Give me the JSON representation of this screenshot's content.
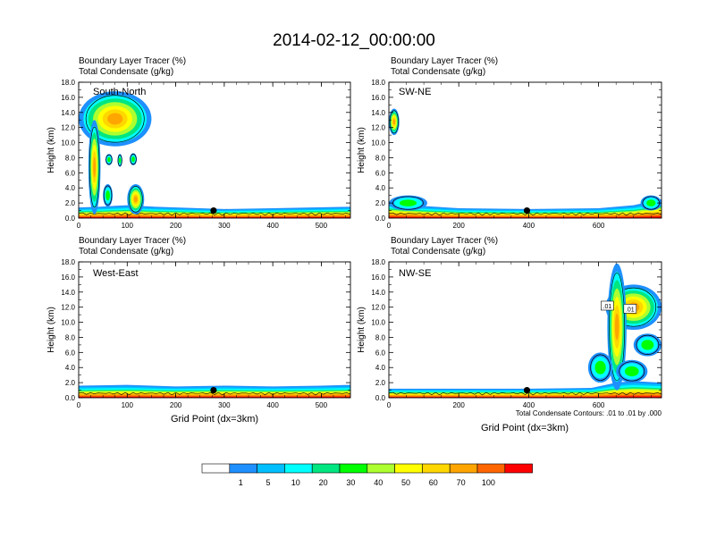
{
  "title": "2014-02-12_00:00:00",
  "subtitle_line1": "Boundary Layer Tracer   (%)",
  "subtitle_line2": "Total Condensate   (g/kg)",
  "ylabel": "Height (km)",
  "xlabel": "Grid Point (dx=3km)",
  "contour_note": "Total Condensate Contours: .01 to .01 by .000",
  "colorbar": {
    "labels": [
      "1",
      "5",
      "10",
      "20",
      "30",
      "40",
      "50",
      "60",
      "70",
      "100"
    ],
    "colors": [
      "#ffffff",
      "#1e90ff",
      "#00bfff",
      "#00ffff",
      "#00e680",
      "#00ff00",
      "#adff2f",
      "#ffff00",
      "#ffd700",
      "#ffa500",
      "#ff6600",
      "#ff0000"
    ]
  },
  "chart_data": [
    {
      "type": "heatmap",
      "name": "South-North",
      "ylim": [
        0,
        18
      ],
      "xlim": [
        0,
        560
      ],
      "y_ticks": [
        "0.0",
        "2.0",
        "4.0",
        "6.0",
        "8.0",
        "10.0",
        "12.0",
        "14.0",
        "16.0",
        "18.0"
      ],
      "x_ticks": [
        {
          "v": 0,
          "label": "0"
        },
        {
          "v": 100,
          "label": "100"
        },
        {
          "v": 200,
          "label": "200"
        },
        {
          "v": 300,
          "label": "300"
        },
        {
          "v": 400,
          "label": "400"
        },
        {
          "v": 500,
          "label": "500"
        }
      ],
      "surface_point": {
        "x": 278,
        "y": 1.0
      },
      "bl_top": [
        [
          0,
          1.4
        ],
        [
          40,
          1.5
        ],
        [
          100,
          1.7
        ],
        [
          160,
          1.5
        ],
        [
          250,
          1.3
        ],
        [
          300,
          1.2
        ],
        [
          400,
          1.3
        ],
        [
          480,
          1.4
        ],
        [
          560,
          1.5
        ]
      ],
      "blobs": [
        {
          "x": [
            0,
            150
          ],
          "y": [
            9.5,
            16.8
          ],
          "shape": "cloud"
        },
        {
          "x": [
            20,
            45
          ],
          "y": [
            0.5,
            13.0
          ],
          "shape": "column"
        },
        {
          "x": [
            100,
            135
          ],
          "y": [
            0.5,
            4.5
          ],
          "shape": "column"
        },
        {
          "x": [
            50,
            70
          ],
          "y": [
            1.5,
            4.5
          ],
          "shape": "small"
        },
        {
          "x": [
            55,
            70
          ],
          "y": [
            7.0,
            8.5
          ],
          "shape": "small"
        },
        {
          "x": [
            80,
            90
          ],
          "y": [
            6.8,
            8.5
          ],
          "shape": "small"
        },
        {
          "x": [
            105,
            120
          ],
          "y": [
            7.0,
            8.6
          ],
          "shape": "small"
        }
      ]
    },
    {
      "type": "heatmap",
      "name": "SW-NE",
      "ylim": [
        0,
        18
      ],
      "xlim": [
        0,
        780
      ],
      "y_ticks": [
        "0.0",
        "2.0",
        "4.0",
        "6.0",
        "8.0",
        "10.0",
        "12.0",
        "14.0",
        "16.0",
        "18.0"
      ],
      "x_ticks": [
        {
          "v": 0,
          "label": "0"
        },
        {
          "v": 200,
          "label": "200"
        },
        {
          "v": 400,
          "label": "400"
        },
        {
          "v": 600,
          "label": "600"
        }
      ],
      "surface_point": {
        "x": 395,
        "y": 1.0
      },
      "bl_top": [
        [
          0,
          2.0
        ],
        [
          40,
          1.8
        ],
        [
          100,
          1.6
        ],
        [
          200,
          1.3
        ],
        [
          400,
          1.2
        ],
        [
          600,
          1.3
        ],
        [
          700,
          1.7
        ],
        [
          780,
          2.5
        ]
      ],
      "blobs": [
        {
          "x": [
            0,
            30
          ],
          "y": [
            11.0,
            14.5
          ],
          "shape": "cloud"
        },
        {
          "x": [
            0,
            110
          ],
          "y": [
            1.0,
            3.0
          ],
          "shape": "small"
        },
        {
          "x": [
            720,
            780
          ],
          "y": [
            1.0,
            3.0
          ],
          "shape": "small"
        }
      ]
    },
    {
      "type": "heatmap",
      "name": "West-East",
      "ylim": [
        0,
        18
      ],
      "xlim": [
        0,
        560
      ],
      "y_ticks": [
        "0.0",
        "2.0",
        "4.0",
        "6.0",
        "8.0",
        "10.0",
        "12.0",
        "14.0",
        "16.0",
        "18.0"
      ],
      "x_ticks": [
        {
          "v": 0,
          "label": "0"
        },
        {
          "v": 100,
          "label": "100"
        },
        {
          "v": 200,
          "label": "200"
        },
        {
          "v": 300,
          "label": "300"
        },
        {
          "v": 400,
          "label": "400"
        },
        {
          "v": 500,
          "label": "500"
        }
      ],
      "surface_point": {
        "x": 278,
        "y": 1.0
      },
      "bl_top": [
        [
          0,
          1.6
        ],
        [
          100,
          1.7
        ],
        [
          200,
          1.5
        ],
        [
          300,
          1.6
        ],
        [
          400,
          1.5
        ],
        [
          500,
          1.6
        ],
        [
          560,
          1.7
        ]
      ],
      "blobs": []
    },
    {
      "type": "heatmap",
      "name": "NW-SE",
      "ylim": [
        0,
        18
      ],
      "xlim": [
        0,
        780
      ],
      "y_ticks": [
        "0.0",
        "2.0",
        "4.0",
        "6.0",
        "8.0",
        "10.0",
        "12.0",
        "14.0",
        "16.0",
        "18.0"
      ],
      "x_ticks": [
        {
          "v": 0,
          "label": "0"
        },
        {
          "v": 200,
          "label": "200"
        },
        {
          "v": 400,
          "label": "400"
        },
        {
          "v": 600,
          "label": "600"
        }
      ],
      "surface_point": {
        "x": 395,
        "y": 1.0
      },
      "bl_top": [
        [
          0,
          1.2
        ],
        [
          200,
          1.2
        ],
        [
          400,
          1.2
        ],
        [
          580,
          1.3
        ],
        [
          650,
          2.0
        ],
        [
          700,
          2.2
        ],
        [
          780,
          2.0
        ]
      ],
      "contour_labels": [
        {
          "x": 625,
          "y": 12.2,
          "label": ".01"
        },
        {
          "x": 690,
          "y": 11.8,
          "label": ".01"
        }
      ],
      "blobs": [
        {
          "x": [
            620,
            780
          ],
          "y": [
            9.0,
            15.0
          ],
          "shape": "cloud"
        },
        {
          "x": [
            625,
            680
          ],
          "y": [
            1.0,
            17.8
          ],
          "shape": "column"
        },
        {
          "x": [
            570,
            640
          ],
          "y": [
            2.0,
            6.0
          ],
          "shape": "small"
        },
        {
          "x": [
            700,
            780
          ],
          "y": [
            5.5,
            8.5
          ],
          "shape": "small"
        },
        {
          "x": [
            650,
            740
          ],
          "y": [
            2.0,
            5.0
          ],
          "shape": "small"
        }
      ]
    }
  ]
}
